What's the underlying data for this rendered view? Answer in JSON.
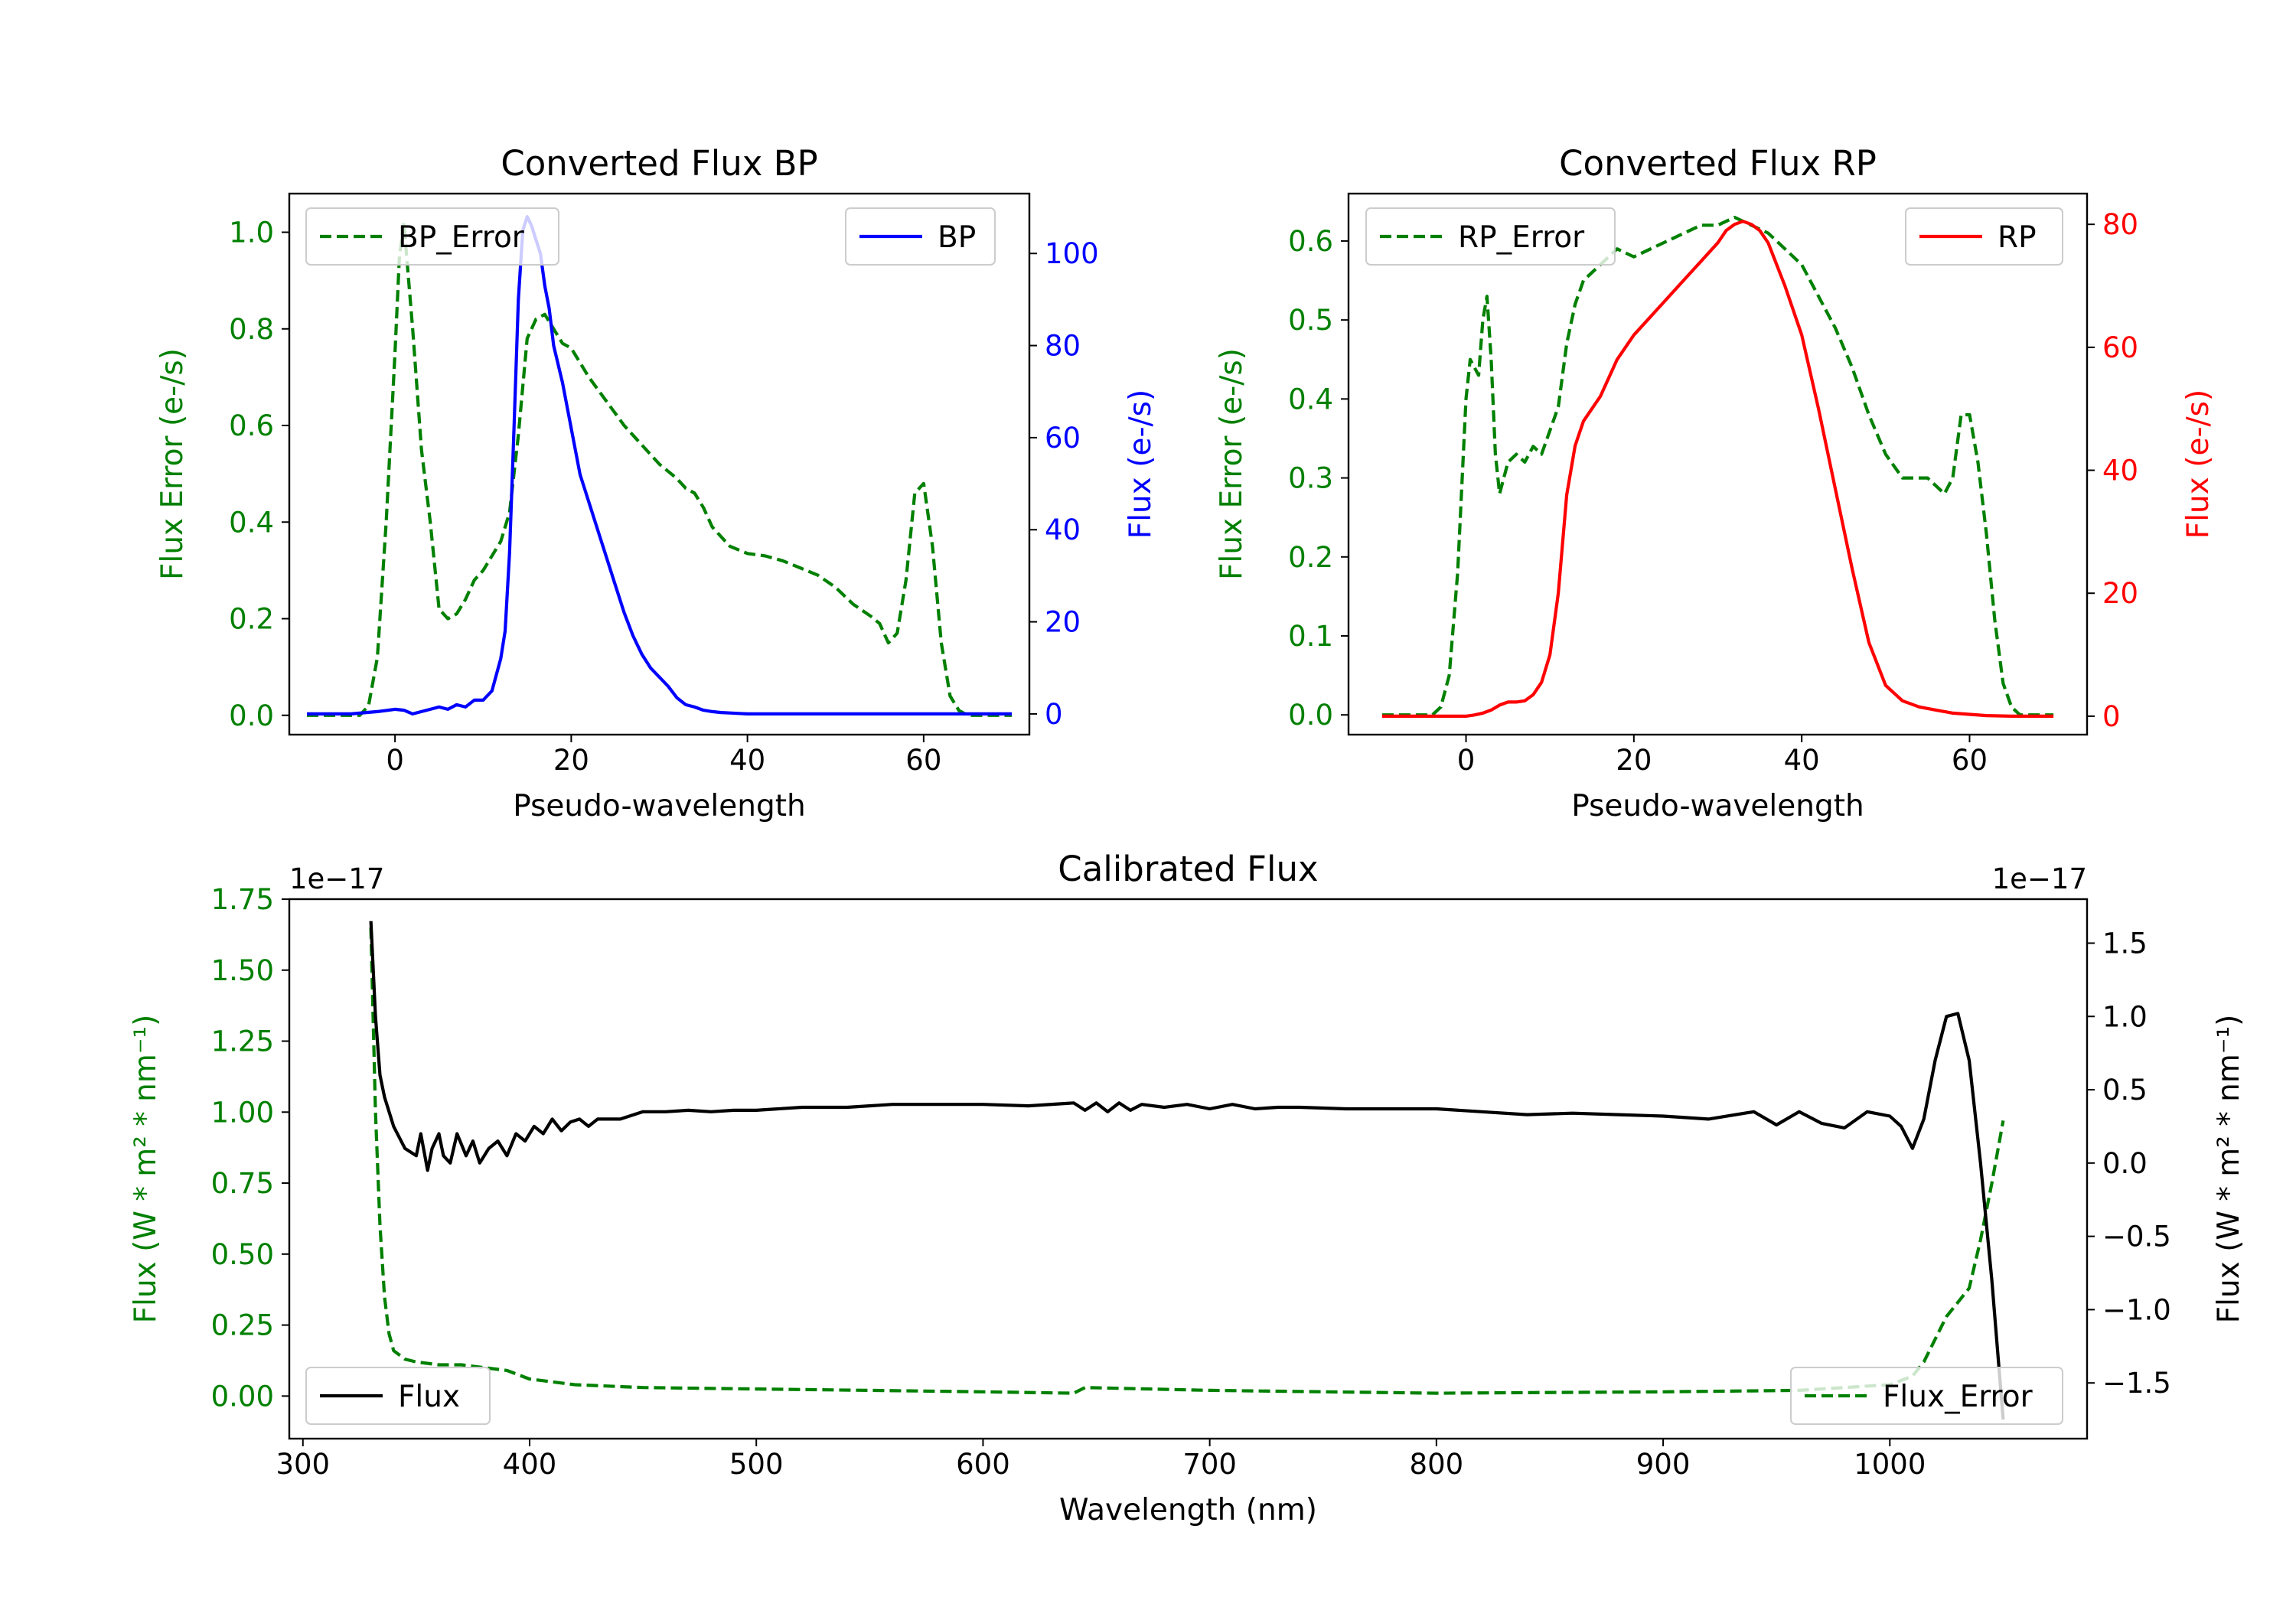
{
  "colors": {
    "green": "#008000",
    "blue": "#0000ff",
    "red": "#ff0000",
    "black": "#000000"
  },
  "chart_data": [
    {
      "id": "bp",
      "type": "line",
      "title": "Converted Flux BP",
      "xlabel": "Pseudo-wavelength",
      "ylabel_left": "Flux Error (e-/s)",
      "ylabel_right": "Flux (e-/s)",
      "xlim": [
        -12,
        72
      ],
      "ylim_left": [
        -0.04,
        1.08
      ],
      "ylim_right": [
        -4.5,
        113
      ],
      "xticks": [
        "0",
        "20",
        "40",
        "60"
      ],
      "yticks_left": [
        "0.0",
        "0.2",
        "0.4",
        "0.6",
        "0.8",
        "1.0"
      ],
      "yticks_right": [
        "0",
        "20",
        "40",
        "60",
        "80",
        "100"
      ],
      "legend_left": "BP_Error",
      "legend_right": "BP",
      "series": [
        {
          "name": "BP_Error",
          "axis": "left",
          "style": "dashed",
          "color": "#008000",
          "x": [
            -10,
            -6,
            -4,
            -3,
            -2,
            -1,
            0,
            0.5,
            1,
            2,
            3,
            4,
            5,
            6,
            7,
            8,
            9,
            10,
            11,
            12,
            13,
            14,
            15,
            16,
            17,
            18,
            19,
            20,
            22,
            24,
            26,
            28,
            30,
            32,
            33,
            34,
            35,
            36,
            38,
            40,
            42,
            44,
            46,
            48,
            50,
            52,
            54,
            55,
            56,
            57,
            58,
            59,
            60,
            61,
            62,
            63,
            64,
            65,
            66,
            68,
            70
          ],
          "y": [
            0.0,
            0.0,
            0.0,
            0.02,
            0.12,
            0.4,
            0.75,
            0.95,
            1.02,
            0.8,
            0.55,
            0.4,
            0.22,
            0.2,
            0.21,
            0.24,
            0.28,
            0.3,
            0.33,
            0.36,
            0.42,
            0.58,
            0.78,
            0.82,
            0.83,
            0.8,
            0.77,
            0.76,
            0.7,
            0.65,
            0.6,
            0.56,
            0.52,
            0.49,
            0.47,
            0.46,
            0.43,
            0.39,
            0.35,
            0.335,
            0.33,
            0.32,
            0.305,
            0.29,
            0.265,
            0.23,
            0.205,
            0.19,
            0.15,
            0.17,
            0.28,
            0.46,
            0.48,
            0.35,
            0.15,
            0.04,
            0.01,
            0.0,
            0.0,
            0.0,
            0.0
          ]
        },
        {
          "name": "BP",
          "axis": "right",
          "style": "solid",
          "color": "#0000ff",
          "x": [
            -10,
            -5,
            -2,
            0,
            1,
            2,
            3,
            4,
            5,
            6,
            7,
            8,
            9,
            10,
            11,
            12,
            12.5,
            13,
            13.5,
            14,
            14.5,
            15,
            15.5,
            16,
            16.5,
            17,
            17.5,
            18,
            19,
            20,
            21,
            22,
            23,
            24,
            25,
            26,
            27,
            28,
            29,
            30,
            31,
            32,
            33,
            34,
            35,
            36,
            37,
            38,
            39,
            40,
            41,
            42,
            43,
            44,
            45,
            50,
            55,
            60,
            65,
            70
          ],
          "y": [
            0,
            0,
            0.5,
            1,
            0.8,
            0,
            0.5,
            1,
            1.5,
            1,
            2,
            1.5,
            3,
            3,
            5,
            12,
            18,
            35,
            62,
            90,
            105,
            108,
            106,
            103,
            100,
            93,
            88,
            80,
            72,
            62,
            52,
            46,
            40,
            34,
            28,
            22,
            17,
            13,
            10,
            8,
            6,
            3.5,
            2,
            1.5,
            0.8,
            0.5,
            0.3,
            0.2,
            0.1,
            0,
            0,
            0,
            0,
            0,
            0,
            0,
            0,
            0,
            0,
            0
          ]
        }
      ]
    },
    {
      "id": "rp",
      "type": "line",
      "title": "Converted Flux RP",
      "xlabel": "Pseudo-wavelength",
      "ylabel_left": "Flux Error (e-/s)",
      "ylabel_right": "Flux (e-/s)",
      "xlim": [
        -14,
        74
      ],
      "ylim_left": [
        -0.025,
        0.66
      ],
      "ylim_right": [
        -3,
        85
      ],
      "xticks": [
        "0",
        "20",
        "40",
        "60"
      ],
      "yticks_left": [
        "0.0",
        "0.1",
        "0.2",
        "0.3",
        "0.4",
        "0.5",
        "0.6"
      ],
      "yticks_right": [
        "0",
        "20",
        "40",
        "60",
        "80"
      ],
      "legend_left": "RP_Error",
      "legend_right": "RP",
      "series": [
        {
          "name": "RP_Error",
          "axis": "left",
          "style": "dashed",
          "color": "#008000",
          "x": [
            -10,
            -5,
            -4,
            -3,
            -2,
            -1,
            0,
            0.5,
            1,
            1.5,
            2,
            2.5,
            3,
            3.5,
            4,
            5,
            6,
            7,
            8,
            9,
            10,
            11,
            12,
            13,
            14,
            16,
            18,
            20,
            22,
            24,
            26,
            28,
            30,
            32,
            34,
            36,
            38,
            40,
            42,
            44,
            46,
            48,
            50,
            52,
            54,
            55,
            56,
            57,
            58,
            59,
            60,
            61,
            62,
            63,
            64,
            65,
            66,
            70
          ],
          "y": [
            0,
            0,
            0,
            0.01,
            0.05,
            0.18,
            0.4,
            0.45,
            0.44,
            0.43,
            0.5,
            0.53,
            0.45,
            0.33,
            0.28,
            0.32,
            0.33,
            0.32,
            0.34,
            0.33,
            0.36,
            0.39,
            0.47,
            0.52,
            0.55,
            0.57,
            0.59,
            0.58,
            0.59,
            0.6,
            0.61,
            0.62,
            0.62,
            0.63,
            0.62,
            0.61,
            0.59,
            0.57,
            0.53,
            0.49,
            0.44,
            0.38,
            0.33,
            0.3,
            0.3,
            0.3,
            0.29,
            0.28,
            0.3,
            0.38,
            0.38,
            0.32,
            0.23,
            0.12,
            0.04,
            0.01,
            0,
            0
          ]
        },
        {
          "name": "RP",
          "axis": "right",
          "style": "solid",
          "color": "#ff0000",
          "x": [
            -10,
            -5,
            -2,
            0,
            1,
            2,
            3,
            4,
            5,
            6,
            7,
            8,
            9,
            10,
            11,
            12,
            13,
            14,
            15,
            16,
            18,
            20,
            22,
            24,
            26,
            28,
            30,
            31,
            32,
            33,
            34,
            35,
            36,
            38,
            40,
            42,
            44,
            46,
            48,
            50,
            52,
            54,
            56,
            58,
            60,
            62,
            65,
            70
          ],
          "y": [
            0,
            0,
            0,
            0,
            0.2,
            0.5,
            1,
            1.8,
            2.3,
            2.3,
            2.5,
            3.5,
            5.5,
            10,
            20,
            36,
            44,
            48,
            50,
            52,
            58,
            62,
            65,
            68,
            71,
            74,
            77,
            79,
            80,
            80.5,
            80,
            79,
            77,
            70,
            62,
            50,
            37,
            24,
            12,
            5,
            2.5,
            1.5,
            1,
            0.5,
            0.3,
            0.1,
            0,
            0
          ]
        }
      ]
    },
    {
      "id": "cal",
      "type": "line",
      "title": "Calibrated Flux",
      "xlabel": "Wavelength (nm)",
      "ylabel_left": "Flux (W * m² * nm⁻¹)",
      "ylabel_right": "Flux (W * m² * nm⁻¹)",
      "offset_left": "1e−17",
      "offset_right": "1e−17",
      "xlim": [
        294,
        1087
      ],
      "ylim_left": [
        -0.15,
        1.75
      ],
      "ylim_right": [
        -1.88,
        1.8
      ],
      "xticks": [
        "300",
        "400",
        "500",
        "600",
        "700",
        "800",
        "900",
        "1000"
      ],
      "yticks_left": [
        "0.00",
        "0.25",
        "0.50",
        "0.75",
        "1.00",
        "1.25",
        "1.50",
        "1.75"
      ],
      "yticks_right": [
        "−1.5",
        "−1.0",
        "−0.5",
        "0.0",
        "0.5",
        "1.0",
        "1.5"
      ],
      "legend_left": "Flux",
      "legend_right": "Flux_Error",
      "series": [
        {
          "name": "Flux_Error",
          "axis": "left",
          "style": "dashed",
          "color": "#008000",
          "x": [
            330,
            332,
            334,
            336,
            338,
            340,
            345,
            350,
            360,
            370,
            380,
            390,
            400,
            420,
            450,
            500,
            550,
            600,
            640,
            645,
            700,
            800,
            900,
            960,
            1000,
            1010,
            1015,
            1020,
            1025,
            1030,
            1035,
            1040,
            1045,
            1050
          ],
          "y": [
            1.65,
            1.0,
            0.6,
            0.35,
            0.22,
            0.16,
            0.13,
            0.12,
            0.11,
            0.11,
            0.1,
            0.09,
            0.06,
            0.04,
            0.03,
            0.025,
            0.02,
            0.015,
            0.01,
            0.03,
            0.02,
            0.01,
            0.015,
            0.02,
            0.04,
            0.07,
            0.12,
            0.2,
            0.28,
            0.33,
            0.38,
            0.55,
            0.75,
            0.97
          ]
        },
        {
          "name": "Flux",
          "axis": "right",
          "style": "solid",
          "color": "#000000",
          "x": [
            330,
            332,
            334,
            336,
            340,
            345,
            350,
            352,
            355,
            357,
            360,
            362,
            365,
            368,
            372,
            375,
            378,
            382,
            386,
            390,
            394,
            398,
            402,
            406,
            410,
            414,
            418,
            422,
            426,
            430,
            440,
            450,
            460,
            470,
            480,
            490,
            500,
            520,
            540,
            560,
            580,
            600,
            620,
            640,
            645,
            650,
            655,
            660,
            665,
            670,
            680,
            690,
            700,
            710,
            720,
            730,
            740,
            760,
            780,
            800,
            820,
            840,
            860,
            880,
            900,
            920,
            940,
            950,
            960,
            970,
            980,
            990,
            1000,
            1005,
            1010,
            1015,
            1020,
            1025,
            1030,
            1035,
            1040,
            1045,
            1050
          ],
          "y": [
            1.65,
            1.0,
            0.6,
            0.45,
            0.25,
            0.1,
            0.05,
            0.2,
            -0.05,
            0.1,
            0.2,
            0.05,
            0.0,
            0.2,
            0.05,
            0.15,
            0.0,
            0.1,
            0.15,
            0.05,
            0.2,
            0.15,
            0.25,
            0.2,
            0.3,
            0.22,
            0.28,
            0.3,
            0.25,
            0.3,
            0.3,
            0.35,
            0.35,
            0.36,
            0.35,
            0.36,
            0.36,
            0.38,
            0.38,
            0.4,
            0.4,
            0.4,
            0.39,
            0.41,
            0.36,
            0.41,
            0.35,
            0.41,
            0.36,
            0.4,
            0.38,
            0.4,
            0.37,
            0.4,
            0.37,
            0.38,
            0.38,
            0.37,
            0.37,
            0.37,
            0.35,
            0.33,
            0.34,
            0.33,
            0.32,
            0.3,
            0.35,
            0.26,
            0.35,
            0.27,
            0.24,
            0.35,
            0.32,
            0.25,
            0.1,
            0.3,
            0.7,
            1.0,
            1.02,
            0.7,
            0.0,
            -0.8,
            -1.75
          ]
        }
      ]
    }
  ]
}
